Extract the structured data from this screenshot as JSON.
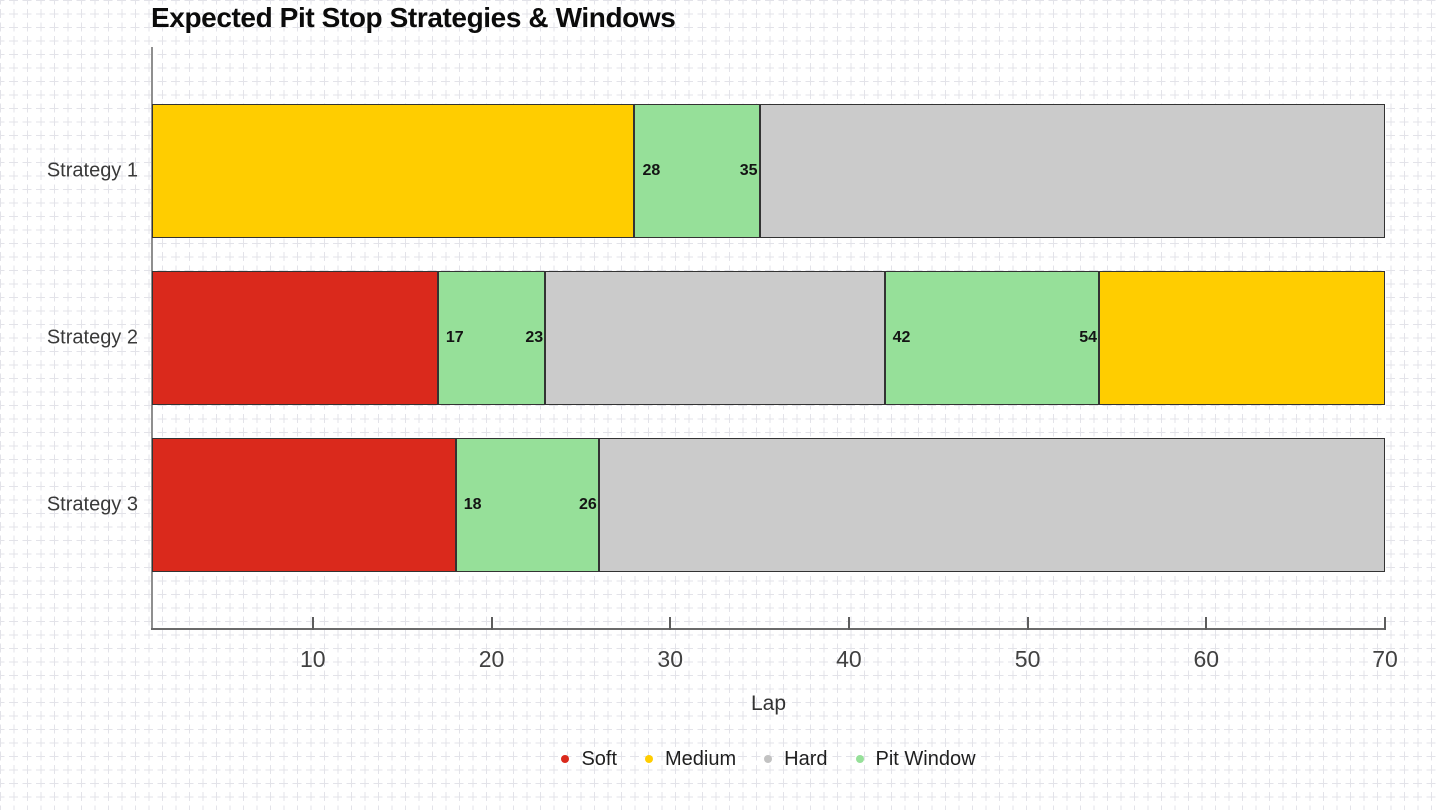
{
  "chart_data": {
    "type": "bar",
    "orientation": "horizontal",
    "stacked": true,
    "title": "Expected Pit Stop Strategies & Windows",
    "xlabel": "Lap",
    "xlim": [
      1,
      70
    ],
    "x_ticks": [
      10,
      20,
      30,
      40,
      50,
      60,
      70
    ],
    "grid": "fine graph-paper background grid",
    "legend_position": "bottom center",
    "categories": [
      "Strategy 1",
      "Strategy 2",
      "Strategy 3"
    ],
    "compound_colors": {
      "Soft": "#da291c",
      "Medium": "#ffcd00",
      "Hard": "#cbcbcb",
      "Pit Window": "#96e099"
    },
    "legend": [
      {
        "label": "Soft",
        "color": "#da291c"
      },
      {
        "label": "Medium",
        "color": "#ffcd00"
      },
      {
        "label": "Hard",
        "color": "#c2c2c2"
      },
      {
        "label": "Pit Window",
        "color": "#96e099"
      }
    ],
    "rows": [
      {
        "category": "Strategy 1",
        "segments": [
          {
            "type": "Medium",
            "start": 1,
            "end": 28
          },
          {
            "type": "Pit Window",
            "start": 28,
            "end": 35,
            "label_start": "28",
            "label_end": "35"
          },
          {
            "type": "Hard",
            "start": 35,
            "end": 70
          }
        ]
      },
      {
        "category": "Strategy 2",
        "segments": [
          {
            "type": "Soft",
            "start": 1,
            "end": 17
          },
          {
            "type": "Pit Window",
            "start": 17,
            "end": 23,
            "label_start": "17",
            "label_end": "23"
          },
          {
            "type": "Hard",
            "start": 23,
            "end": 42
          },
          {
            "type": "Pit Window",
            "start": 42,
            "end": 54,
            "label_start": "42",
            "label_end": "54"
          },
          {
            "type": "Medium",
            "start": 54,
            "end": 70
          }
        ]
      },
      {
        "category": "Strategy 3",
        "segments": [
          {
            "type": "Soft",
            "start": 1,
            "end": 18
          },
          {
            "type": "Pit Window",
            "start": 18,
            "end": 26,
            "label_start": "18",
            "label_end": "26"
          },
          {
            "type": "Hard",
            "start": 26,
            "end": 70
          }
        ]
      }
    ]
  }
}
